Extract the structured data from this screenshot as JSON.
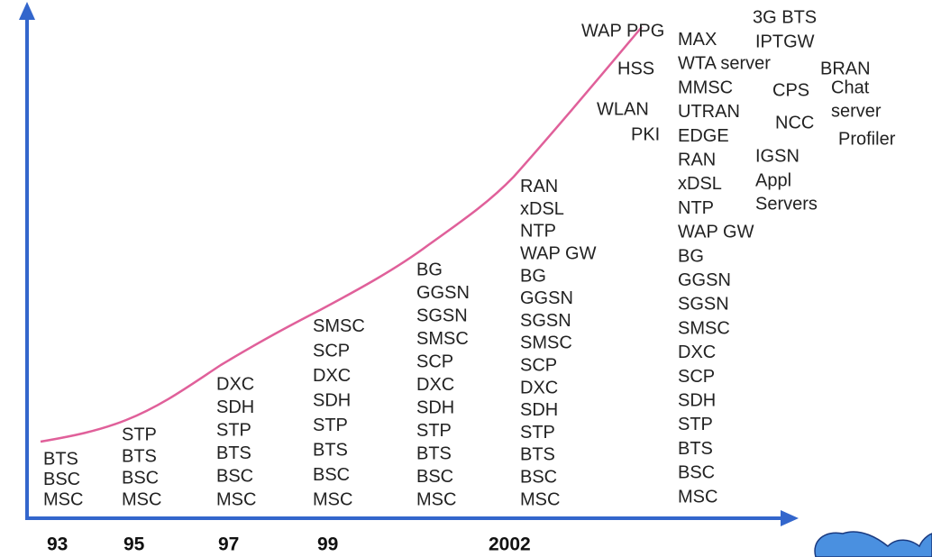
{
  "years": [
    "93",
    "95",
    "97",
    "99",
    "2002"
  ],
  "columns": [
    [
      "BTS",
      "BSC",
      "MSC"
    ],
    [
      "STP",
      "BTS",
      "BSC",
      "MSC"
    ],
    [
      "DXC",
      "SDH",
      "STP",
      "BTS",
      "BSC",
      "MSC"
    ],
    [
      "SMSC",
      "SCP",
      "DXC",
      "SDH",
      "STP",
      "BTS",
      "BSC",
      "MSC"
    ],
    [
      "BG",
      "GGSN",
      "SGSN",
      "SMSC",
      "SCP",
      "DXC",
      "SDH",
      "STP",
      "BTS",
      "BSC",
      "MSC"
    ],
    [
      "RAN",
      "xDSL",
      "NTP",
      "WAP GW",
      "BG",
      "GGSN",
      "SGSN",
      "SMSC",
      "SCP",
      "DXC",
      "SDH",
      "STP",
      "BTS",
      "BSC",
      "MSC"
    ],
    [
      "MAX",
      "WTA server",
      "MMSC",
      "UTRAN",
      "EDGE",
      "RAN",
      "xDSL",
      "NTP",
      "WAP GW",
      "BG",
      "GGSN",
      "SGSN",
      "SMSC",
      "DXC",
      "SCP",
      "SDH",
      "STP",
      "BTS",
      "BSC",
      "MSC"
    ]
  ],
  "labels": [
    "WAP PPG",
    "HSS",
    "WLAN",
    "PKI",
    "3G BTS",
    "IPTGW",
    "BRAN",
    "CPS",
    "Chat",
    "server",
    "NCC",
    "Profiler",
    "IGSN",
    "Appl",
    "Servers"
  ]
}
